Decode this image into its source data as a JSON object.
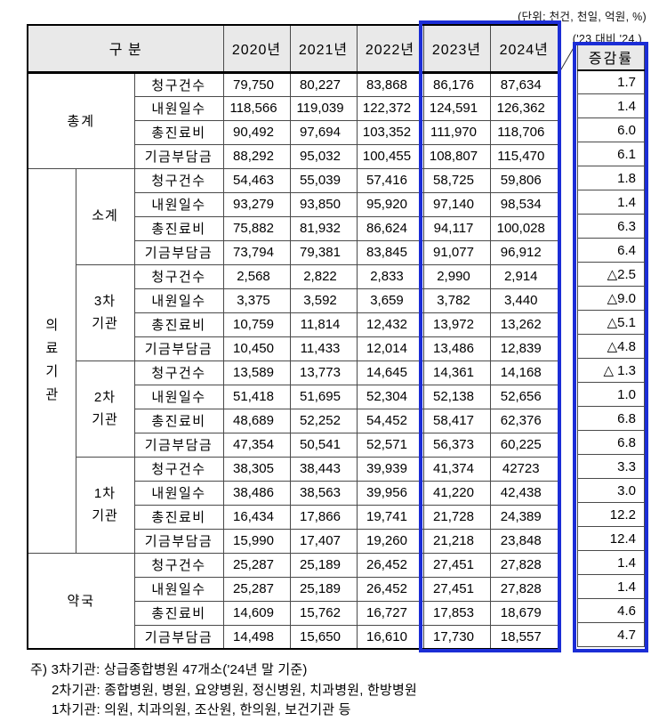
{
  "colors": {
    "accent": "#1b2dd6",
    "header_bg": "#e9e9e9",
    "grid": "#4a4a4a"
  },
  "notes": {
    "units": "(단위: 천건, 천일, 억원, %)",
    "compare": "('23 대비 '24.)"
  },
  "header": {
    "category": "구 분",
    "years": [
      "2020년",
      "2021년",
      "2022년",
      "2023년",
      "2024년"
    ],
    "rate": "증감률"
  },
  "table": {
    "sections": [
      {
        "type": "merged",
        "label": "총계",
        "blocks": [
          {
            "rows": [
              {
                "metric": "청구건수",
                "values": [
                  "79,750",
                  "80,227",
                  "83,868",
                  "86,176",
                  "87,634"
                ],
                "rate": "1.7"
              },
              {
                "metric": "내원일수",
                "values": [
                  "118,566",
                  "119,039",
                  "122,372",
                  "124,591",
                  "126,362"
                ],
                "rate": "1.4"
              },
              {
                "metric": "총진료비",
                "values": [
                  "90,492",
                  "97,694",
                  "103,352",
                  "111,970",
                  "118,706"
                ],
                "rate": "6.0"
              },
              {
                "metric": "기금부담금",
                "values": [
                  "88,292",
                  "95,032",
                  "100,455",
                  "108,807",
                  "115,470"
                ],
                "rate": "6.1"
              }
            ]
          }
        ]
      },
      {
        "type": "split",
        "label": "의료기관",
        "label_chars": [
          "의",
          "료",
          "기",
          "관"
        ],
        "blocks": [
          {
            "label_lines": [
              "소계"
            ],
            "rows": [
              {
                "metric": "청구건수",
                "values": [
                  "54,463",
                  "55,039",
                  "57,416",
                  "58,725",
                  "59,806"
                ],
                "rate": "1.8"
              },
              {
                "metric": "내원일수",
                "values": [
                  "93,279",
                  "93,850",
                  "95,920",
                  "97,140",
                  "98,534"
                ],
                "rate": "1.4"
              },
              {
                "metric": "총진료비",
                "values": [
                  "75,882",
                  "81,932",
                  "86,624",
                  "94,117",
                  "100,028"
                ],
                "rate": "6.3"
              },
              {
                "metric": "기금부담금",
                "values": [
                  "73,794",
                  "79,381",
                  "83,845",
                  "91,077",
                  "96,912"
                ],
                "rate": "6.4"
              }
            ]
          },
          {
            "label_lines": [
              "3차",
              "기관"
            ],
            "rows": [
              {
                "metric": "청구건수",
                "values": [
                  "2,568",
                  "2,822",
                  "2,833",
                  "2,990",
                  "2,914"
                ],
                "rate": "△2.5"
              },
              {
                "metric": "내원일수",
                "values": [
                  "3,375",
                  "3,592",
                  "3,659",
                  "3,782",
                  "3,440"
                ],
                "rate": "△9.0"
              },
              {
                "metric": "총진료비",
                "values": [
                  "10,759",
                  "11,814",
                  "12,432",
                  "13,972",
                  "13,262"
                ],
                "rate": "△5.1"
              },
              {
                "metric": "기금부담금",
                "values": [
                  "10,450",
                  "11,433",
                  "12,014",
                  "13,486",
                  "12,839"
                ],
                "rate": "△4.8"
              }
            ]
          },
          {
            "label_lines": [
              "2차",
              "기관"
            ],
            "rows": [
              {
                "metric": "청구건수",
                "values": [
                  "13,589",
                  "13,773",
                  "14,645",
                  "14,361",
                  "14,168"
                ],
                "rate": "△ 1.3"
              },
              {
                "metric": "내원일수",
                "values": [
                  "51,418",
                  "51,695",
                  "52,304",
                  "52,138",
                  "52,656"
                ],
                "rate": "1.0"
              },
              {
                "metric": "총진료비",
                "values": [
                  "48,689",
                  "52,252",
                  "54,452",
                  "58,417",
                  "62,376"
                ],
                "rate": "6.8"
              },
              {
                "metric": "기금부담금",
                "values": [
                  "47,354",
                  "50,541",
                  "52,571",
                  "56,373",
                  "60,225"
                ],
                "rate": "6.8"
              }
            ]
          },
          {
            "label_lines": [
              "1차",
              "기관"
            ],
            "rows": [
              {
                "metric": "청구건수",
                "values": [
                  "38,305",
                  "38,443",
                  "39,939",
                  "41,374",
                  "42723"
                ],
                "rate": "3.3"
              },
              {
                "metric": "내원일수",
                "values": [
                  "38,486",
                  "38,563",
                  "39,956",
                  "41,220",
                  "42,438"
                ],
                "rate": "3.0"
              },
              {
                "metric": "총진료비",
                "values": [
                  "16,434",
                  "17,866",
                  "19,741",
                  "21,728",
                  "24,389"
                ],
                "rate": "12.2"
              },
              {
                "metric": "기금부담금",
                "values": [
                  "15,990",
                  "17,407",
                  "19,260",
                  "21,218",
                  "23,848"
                ],
                "rate": "12.4"
              }
            ]
          }
        ]
      },
      {
        "type": "merged",
        "label": "약국",
        "blocks": [
          {
            "rows": [
              {
                "metric": "청구건수",
                "values": [
                  "25,287",
                  "25,189",
                  "26,452",
                  "27,451",
                  "27,828"
                ],
                "rate": "1.4"
              },
              {
                "metric": "내원일수",
                "values": [
                  "25,287",
                  "25,189",
                  "26,452",
                  "27,451",
                  "27,828"
                ],
                "rate": "1.4"
              },
              {
                "metric": "총진료비",
                "values": [
                  "14,609",
                  "15,762",
                  "16,727",
                  "17,853",
                  "18,679"
                ],
                "rate": "4.6"
              },
              {
                "metric": "기금부담금",
                "values": [
                  "14,498",
                  "15,650",
                  "16,610",
                  "17,730",
                  "18,557"
                ],
                "rate": "4.7"
              }
            ]
          }
        ]
      }
    ]
  },
  "footnotes": {
    "lines": [
      "주) 3차기관: 상급종합병원 47개소('24년 말 기준)",
      "2차기관: 종합병원, 병원, 요양병원, 정신병원, 치과병원, 한방병원",
      "1차기관: 의원, 치과의원, 조산원, 한의원, 보건기관 등"
    ]
  }
}
